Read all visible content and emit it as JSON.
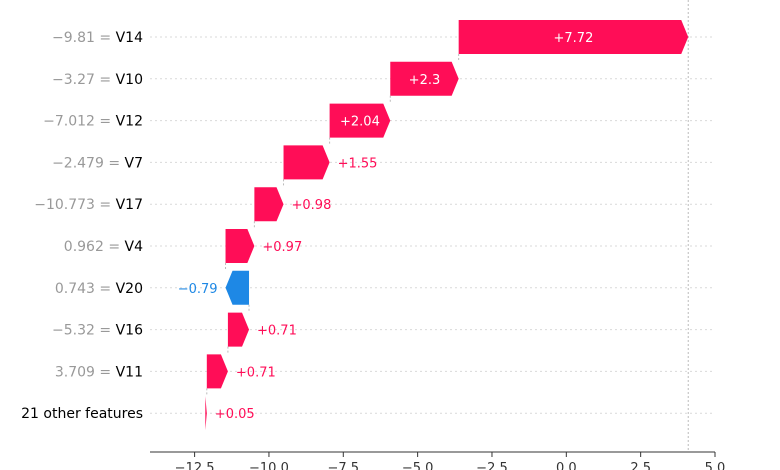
{
  "chart_data": {
    "type": "bar",
    "subtype": "waterfall",
    "features": [
      {
        "value": "−9.81",
        "name": "V14",
        "contribution": 7.72,
        "label": "+7.72"
      },
      {
        "value": "−3.27",
        "name": "V10",
        "contribution": 2.3,
        "label": "+2.3"
      },
      {
        "value": "−7.012",
        "name": "V12",
        "contribution": 2.04,
        "label": "+2.04"
      },
      {
        "value": "−2.479",
        "name": "V7",
        "contribution": 1.55,
        "label": "+1.55"
      },
      {
        "value": "−10.773",
        "name": "V17",
        "contribution": 0.98,
        "label": "+0.98"
      },
      {
        "value": "0.962",
        "name": "V4",
        "contribution": 0.97,
        "label": "+0.97"
      },
      {
        "value": "0.743",
        "name": "V20",
        "contribution": -0.79,
        "label": "−0.79"
      },
      {
        "value": "−5.32",
        "name": "V16",
        "contribution": 0.71,
        "label": "+0.71"
      },
      {
        "value": "3.709",
        "name": "V11",
        "contribution": 0.71,
        "label": "+0.71"
      },
      {
        "value": "",
        "name": "21 other features",
        "contribution": 0.05,
        "label": "+0.05"
      }
    ],
    "end_value": 4.1,
    "xlim": [
      -14.0,
      5.0
    ],
    "xticks": [
      -12.5,
      -10.0,
      -7.5,
      -5.0,
      -2.5,
      0.0,
      2.5,
      5.0
    ],
    "xtick_labels": [
      "−12.5",
      "−10.0",
      "−7.5",
      "−5.0",
      "−2.5",
      "0.0",
      "2.5",
      "5.0"
    ],
    "colors": {
      "positive": "#ff0d57",
      "negative": "#1e88e5"
    },
    "grid": true
  }
}
